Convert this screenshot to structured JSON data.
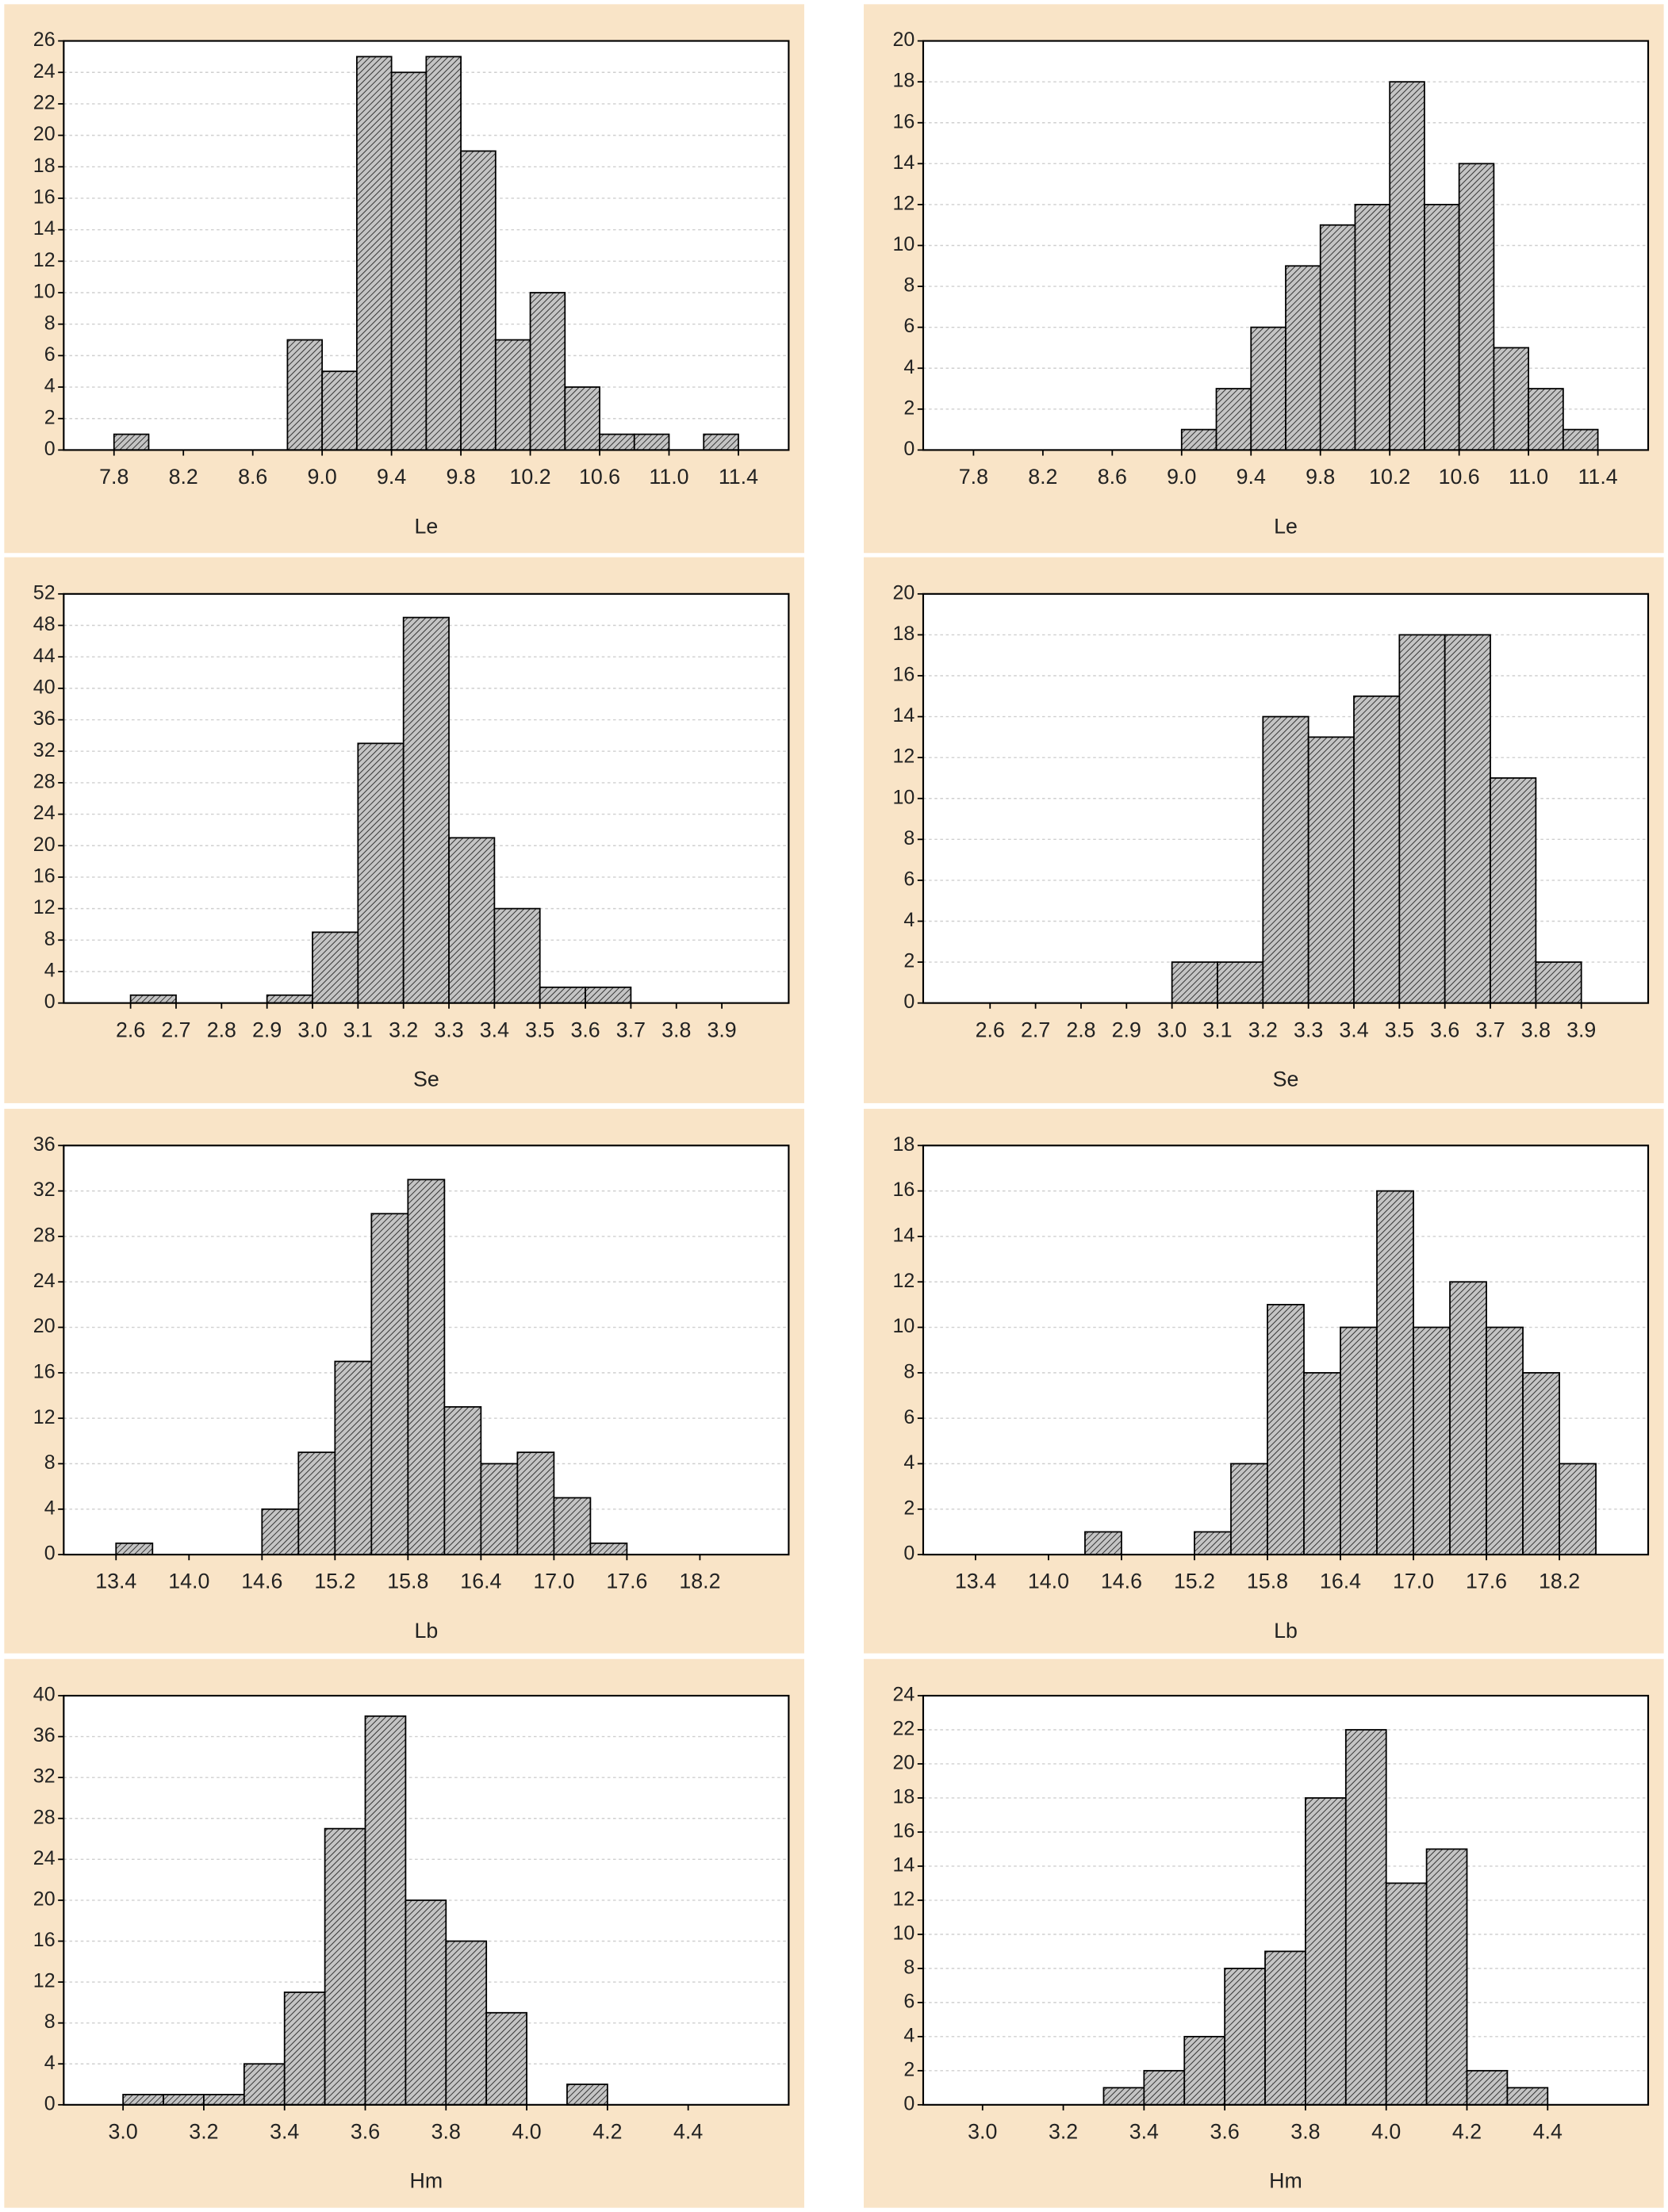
{
  "chart_data": [
    {
      "type": "histogram",
      "xlabel": "Le",
      "color": "#b5b5b5",
      "bins": [
        7.8,
        8.0,
        8.2,
        8.4,
        8.6,
        8.8,
        9.0,
        9.2,
        9.4,
        9.6,
        9.8,
        10.0,
        10.2,
        10.4,
        10.6,
        10.8,
        11.0,
        11.2,
        11.4
      ],
      "values": [
        1,
        0,
        0,
        0,
        0,
        7,
        5,
        25,
        24,
        25,
        19,
        7,
        10,
        4,
        1,
        1,
        0,
        1
      ],
      "xlim": [
        7.51,
        11.69
      ],
      "xticks": [
        7.8,
        8.2,
        8.6,
        {
          "value": 9.0,
          "label": "9.0"
        },
        9.4,
        9.8,
        10.2,
        10.6,
        {
          "value": 11.0,
          "label": "11.0"
        },
        11.4
      ],
      "ylim": [
        0,
        26
      ],
      "yticks": [
        0,
        2,
        4,
        6,
        8,
        10,
        12,
        14,
        16,
        18,
        20,
        22,
        24,
        26
      ],
      "grid": true
    },
    {
      "type": "histogram",
      "xlabel": "Le",
      "color": "#b5b5b5",
      "bins": [
        9.0,
        9.2,
        9.4,
        9.6,
        9.8,
        10.0,
        10.2,
        10.4,
        10.6,
        10.8,
        11.0,
        11.2,
        11.4
      ],
      "values": [
        1,
        3,
        6,
        9,
        11,
        12,
        18,
        12,
        14,
        5,
        3,
        1
      ],
      "xlim": [
        7.51,
        11.69
      ],
      "xticks": [
        7.8,
        8.2,
        8.6,
        {
          "value": 9.0,
          "label": "9.0"
        },
        9.4,
        9.8,
        10.2,
        10.6,
        {
          "value": 11.0,
          "label": "11.0"
        },
        11.4
      ],
      "ylim": [
        0,
        20
      ],
      "yticks": [
        0,
        2,
        4,
        6,
        8,
        10,
        12,
        14,
        16,
        18,
        20
      ],
      "grid": true
    },
    {
      "type": "histogram",
      "xlabel": "Se",
      "color": "#b5b5b5",
      "bins": [
        2.6,
        2.7,
        2.8,
        2.9,
        3.0,
        3.1,
        3.2,
        3.3,
        3.4,
        3.5,
        3.6,
        3.7
      ],
      "values": [
        1,
        0,
        0,
        1,
        9,
        33,
        49,
        21,
        12,
        2,
        2
      ],
      "xlim": [
        2.453,
        4.047
      ],
      "xticks": [
        2.6,
        2.7,
        2.8,
        2.9,
        {
          "value": 3.0,
          "label": "3.0"
        },
        3.1,
        3.2,
        3.3,
        3.4,
        3.5,
        3.6,
        3.7,
        3.8,
        3.9
      ],
      "ylim": [
        0,
        52
      ],
      "yticks": [
        0,
        4,
        8,
        12,
        16,
        20,
        24,
        28,
        32,
        36,
        40,
        44,
        48,
        52
      ],
      "grid": true
    },
    {
      "type": "histogram",
      "xlabel": "Se",
      "color": "#b5b5b5",
      "bins": [
        3.0,
        3.1,
        3.2,
        3.3,
        3.4,
        3.5,
        3.6,
        3.7,
        3.8,
        3.9
      ],
      "values": [
        2,
        2,
        14,
        13,
        15,
        18,
        18,
        11,
        2
      ],
      "xlim": [
        2.453,
        4.047
      ],
      "xticks": [
        2.6,
        2.7,
        2.8,
        2.9,
        {
          "value": 3.0,
          "label": "3.0"
        },
        3.1,
        3.2,
        3.3,
        3.4,
        3.5,
        3.6,
        3.7,
        3.8,
        3.9
      ],
      "ylim": [
        0,
        20
      ],
      "yticks": [
        0,
        2,
        4,
        6,
        8,
        10,
        12,
        14,
        16,
        18,
        20
      ],
      "grid": true
    },
    {
      "type": "histogram",
      "xlabel": "Lb",
      "color": "#b5b5b5",
      "bins": [
        13.4,
        13.7,
        14.0,
        14.3,
        14.6,
        14.9,
        15.2,
        15.5,
        15.8,
        16.1,
        16.4,
        16.7,
        17.0,
        17.3,
        17.6
      ],
      "values": [
        1,
        0,
        0,
        0,
        4,
        9,
        17,
        30,
        33,
        13,
        8,
        9,
        5,
        1
      ],
      "xlim": [
        12.97,
        18.93
      ],
      "xticks": [
        13.4,
        {
          "value": 14.0,
          "label": "14.0"
        },
        14.6,
        15.2,
        15.8,
        16.4,
        {
          "value": 17.0,
          "label": "17.0"
        },
        17.6,
        18.2
      ],
      "ylim": [
        0,
        36
      ],
      "yticks": [
        0,
        4,
        8,
        12,
        16,
        20,
        24,
        28,
        32,
        36
      ],
      "grid": true
    },
    {
      "type": "histogram",
      "xlabel": "Lb",
      "color": "#b5b5b5",
      "bins": [
        14.3,
        14.6,
        14.9,
        15.2,
        15.5,
        15.8,
        16.1,
        16.4,
        16.7,
        17.0,
        17.3,
        17.6,
        17.9,
        18.2,
        18.5
      ],
      "values": [
        1,
        0,
        0,
        1,
        4,
        11,
        8,
        10,
        16,
        10,
        12,
        10,
        8,
        4
      ],
      "xlim": [
        12.97,
        18.93
      ],
      "xticks": [
        13.4,
        {
          "value": 14.0,
          "label": "14.0"
        },
        14.6,
        15.2,
        15.8,
        16.4,
        {
          "value": 17.0,
          "label": "17.0"
        },
        17.6,
        18.2
      ],
      "ylim": [
        0,
        18
      ],
      "yticks": [
        0,
        2,
        4,
        6,
        8,
        10,
        12,
        14,
        16,
        18
      ],
      "grid": true
    },
    {
      "type": "histogram",
      "xlabel": "Hm",
      "color": "#b5b5b5",
      "bins": [
        3.0,
        3.1,
        3.2,
        3.3,
        3.4,
        3.5,
        3.6,
        3.7,
        3.8,
        3.9,
        4.0,
        4.1,
        4.2
      ],
      "values": [
        1,
        1,
        1,
        4,
        11,
        27,
        38,
        20,
        16,
        9,
        0,
        2
      ],
      "xlim": [
        2.853,
        4.649
      ],
      "xticks": [
        {
          "value": 3.0,
          "label": "3.0"
        },
        3.2,
        3.4,
        3.6,
        3.8,
        {
          "value": 4.0,
          "label": "4.0"
        },
        4.2,
        4.4
      ],
      "ylim": [
        0,
        40
      ],
      "yticks": [
        0,
        4,
        8,
        12,
        16,
        20,
        24,
        28,
        32,
        36,
        40
      ],
      "grid": true
    },
    {
      "type": "histogram",
      "xlabel": "Hm",
      "color": "#b5b5b5",
      "bins": [
        3.3,
        3.4,
        3.5,
        3.6,
        3.7,
        3.8,
        3.9,
        4.0,
        4.1,
        4.2,
        4.3,
        4.4
      ],
      "values": [
        1,
        2,
        4,
        8,
        9,
        18,
        22,
        13,
        15,
        2,
        1
      ],
      "xlim": [
        2.853,
        4.649
      ],
      "xticks": [
        {
          "value": 3.0,
          "label": "3.0"
        },
        3.2,
        3.4,
        3.6,
        3.8,
        {
          "value": 4.0,
          "label": "4.0"
        },
        4.2,
        4.4
      ],
      "ylim": [
        0,
        24
      ],
      "yticks": [
        0,
        2,
        4,
        6,
        8,
        10,
        12,
        14,
        16,
        18,
        20,
        22,
        24
      ],
      "grid": true
    }
  ]
}
